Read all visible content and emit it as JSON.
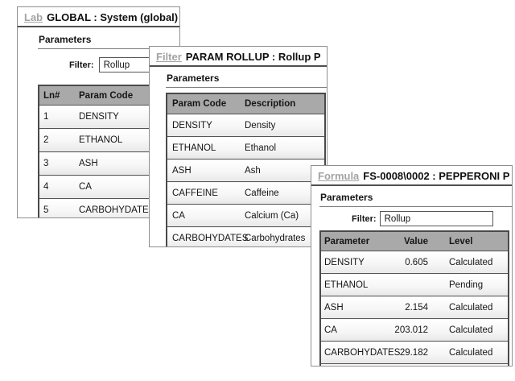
{
  "lab": {
    "title_link": "Lab",
    "title": "GLOBAL : System (global)",
    "section": "Parameters",
    "filter_label": "Filter:",
    "filter_value": "Rollup",
    "table": {
      "headers": [
        "Ln#",
        "Param Code"
      ],
      "rows": [
        [
          "1",
          "DENSITY"
        ],
        [
          "2",
          "ETHANOL"
        ],
        [
          "3",
          "ASH"
        ],
        [
          "4",
          "CA"
        ],
        [
          "5",
          "CARBOHYDATES"
        ]
      ]
    }
  },
  "filter": {
    "title_link": "Filter",
    "title": "PARAM ROLLUP : Rollup P",
    "section": "Parameters",
    "table": {
      "headers": [
        "Param Code",
        "Description"
      ],
      "rows": [
        [
          "DENSITY",
          "Density"
        ],
        [
          "ETHANOL",
          "Ethanol"
        ],
        [
          "ASH",
          "Ash"
        ],
        [
          "CAFFEINE",
          "Caffeine"
        ],
        [
          "CA",
          "Calcium (Ca)"
        ],
        [
          "CARBOHYDATES",
          "Carbohydrates"
        ]
      ]
    }
  },
  "formula": {
    "title_link": "Formula",
    "title": "FS-0008\\0002 : PEPPERONI P",
    "section": "Parameters",
    "filter_label": "Filter:",
    "filter_value": "Rollup",
    "table": {
      "headers": [
        "Parameter",
        "Value",
        "Level"
      ],
      "rows": [
        [
          "DENSITY",
          "0.605",
          "Calculated"
        ],
        [
          "ETHANOL",
          "",
          "Pending"
        ],
        [
          "ASH",
          "2.154",
          "Calculated"
        ],
        [
          "CA",
          "203.012",
          "Calculated"
        ],
        [
          "CARBOHYDATES",
          "29.182",
          "Calculated"
        ]
      ]
    }
  },
  "colors": {
    "header_bg": "#a9a9a9",
    "table_border": "#4a4a4a",
    "window_border": "#8f8f8f",
    "link_gray": "#a3a3a3"
  }
}
